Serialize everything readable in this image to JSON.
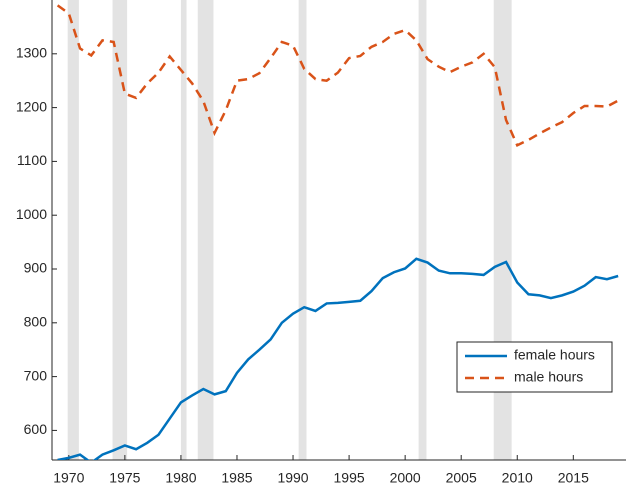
{
  "chart_data": {
    "type": "line",
    "x": [
      1969,
      1970,
      1971,
      1972,
      1973,
      1974,
      1975,
      1976,
      1977,
      1978,
      1979,
      1980,
      1981,
      1982,
      1983,
      1984,
      1985,
      1986,
      1987,
      1988,
      1989,
      1990,
      1991,
      1992,
      1993,
      1994,
      1995,
      1996,
      1997,
      1998,
      1999,
      2000,
      2001,
      2002,
      2003,
      2004,
      2005,
      2006,
      2007,
      2008,
      2009,
      2010,
      2011,
      2012,
      2013,
      2014,
      2015,
      2016,
      2017,
      2018,
      2019
    ],
    "series": [
      {
        "name": "female hours",
        "color": "#0072bd",
        "dash": false,
        "values": [
          545,
          549,
          555,
          540,
          555,
          563,
          572,
          565,
          577,
          592,
          622,
          652,
          665,
          677,
          667,
          673,
          707,
          732,
          750,
          769,
          800,
          817,
          829,
          822,
          836,
          837,
          839,
          841,
          859,
          883,
          894,
          901,
          919,
          912,
          897,
          892,
          892,
          891,
          889,
          904,
          913,
          875,
          853,
          851,
          846,
          851,
          858,
          869,
          885,
          881,
          887
        ]
      },
      {
        "name": "male hours",
        "color": "#d95319",
        "dash": true,
        "values": [
          1390,
          1375,
          1310,
          1297,
          1325,
          1322,
          1226,
          1218,
          1245,
          1265,
          1295,
          1270,
          1245,
          1212,
          1153,
          1195,
          1250,
          1253,
          1264,
          1292,
          1322,
          1315,
          1272,
          1253,
          1250,
          1265,
          1292,
          1296,
          1313,
          1322,
          1337,
          1344,
          1325,
          1290,
          1276,
          1266,
          1276,
          1284,
          1300,
          1275,
          1177,
          1130,
          1140,
          1152,
          1163,
          1173,
          1190,
          1203,
          1203,
          1202,
          1213
        ]
      }
    ],
    "shaded_periods": [
      [
        1969.9,
        1970.9
      ],
      [
        1973.9,
        1975.2
      ],
      [
        1980.0,
        1980.5
      ],
      [
        1981.5,
        1982.9
      ],
      [
        1990.5,
        1991.2
      ],
      [
        2001.2,
        2001.9
      ],
      [
        2007.9,
        2009.5
      ]
    ],
    "shade_color": "#e3e3e3",
    "xlim": [
      1968.5,
      2019.7
    ],
    "xticks": [
      1970,
      1975,
      1980,
      1985,
      1990,
      1995,
      2000,
      2005,
      2010,
      2015
    ],
    "ylim": [
      545,
      1400
    ],
    "yticks": [
      600,
      700,
      800,
      900,
      1000,
      1100,
      1200,
      1300
    ],
    "grid": false,
    "legend_position": "east"
  }
}
